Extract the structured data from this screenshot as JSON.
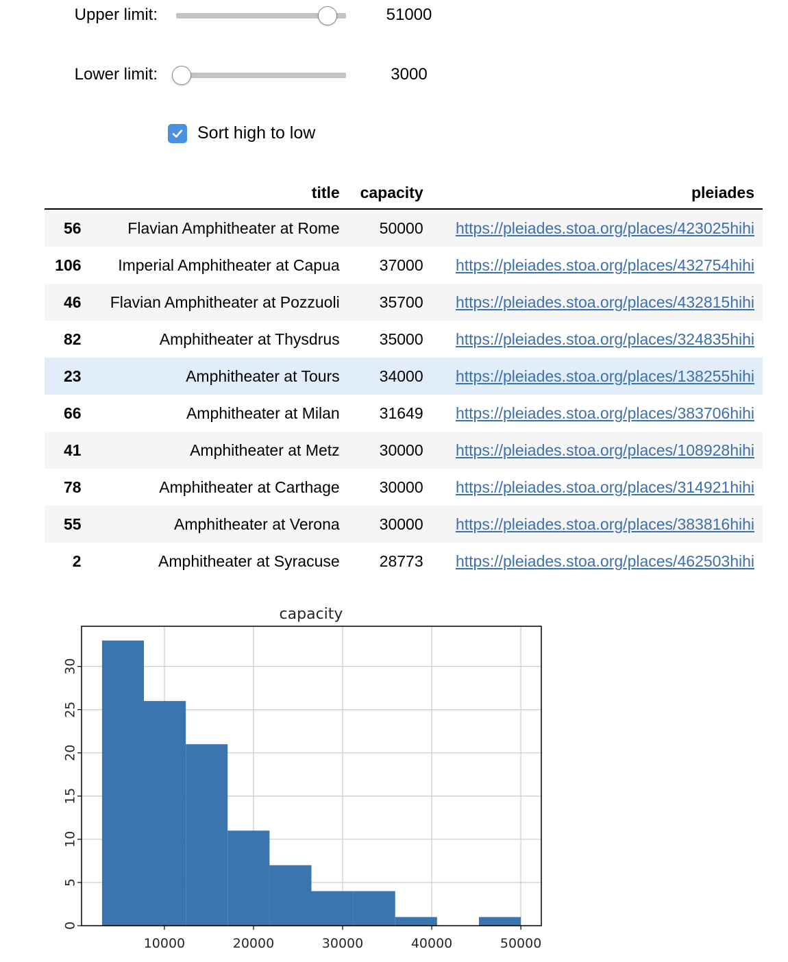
{
  "controls": {
    "upper": {
      "label": "Upper limit:",
      "value": "51000",
      "fraction": 0.92
    },
    "lower": {
      "label": "Lower limit:",
      "value": "3000",
      "fraction": 0.0
    },
    "sort": {
      "label": "Sort high to low",
      "checked": true,
      "icon": "check-icon"
    }
  },
  "table": {
    "columns": [
      "",
      "title",
      "capacity",
      "pleiades"
    ],
    "rows": [
      {
        "index": "56",
        "title": "Flavian Amphitheater at Rome",
        "capacity": "50000",
        "pleiades": "https://pleiades.stoa.org/places/423025hihi"
      },
      {
        "index": "106",
        "title": "Imperial Amphitheater at Capua",
        "capacity": "37000",
        "pleiades": "https://pleiades.stoa.org/places/432754hihi"
      },
      {
        "index": "46",
        "title": "Flavian Amphitheater at Pozzuoli",
        "capacity": "35700",
        "pleiades": "https://pleiades.stoa.org/places/432815hihi"
      },
      {
        "index": "82",
        "title": "Amphitheater at Thysdrus",
        "capacity": "35000",
        "pleiades": "https://pleiades.stoa.org/places/324835hihi"
      },
      {
        "index": "23",
        "title": "Amphitheater at Tours",
        "capacity": "34000",
        "pleiades": "https://pleiades.stoa.org/places/138255hihi"
      },
      {
        "index": "66",
        "title": "Amphitheater at Milan",
        "capacity": "31649",
        "pleiades": "https://pleiades.stoa.org/places/383706hihi"
      },
      {
        "index": "41",
        "title": "Amphitheater at Metz",
        "capacity": "30000",
        "pleiades": "https://pleiades.stoa.org/places/108928hihi"
      },
      {
        "index": "78",
        "title": "Amphitheater at Carthage",
        "capacity": "30000",
        "pleiades": "https://pleiades.stoa.org/places/314921hihi"
      },
      {
        "index": "55",
        "title": "Amphitheater at Verona",
        "capacity": "30000",
        "pleiades": "https://pleiades.stoa.org/places/383816hihi"
      },
      {
        "index": "2",
        "title": "Amphitheater at Syracuse",
        "capacity": "28773",
        "pleiades": "https://pleiades.stoa.org/places/462503hihi"
      }
    ],
    "highlighted_row": 4
  },
  "chart_data": {
    "type": "bar",
    "title": "capacity",
    "xlabel": "",
    "ylabel": "",
    "bins": [
      {
        "start": 3000,
        "end": 7700,
        "count": 33
      },
      {
        "start": 7700,
        "end": 12400,
        "count": 26
      },
      {
        "start": 12400,
        "end": 17100,
        "count": 21
      },
      {
        "start": 17100,
        "end": 21800,
        "count": 11
      },
      {
        "start": 21800,
        "end": 26500,
        "count": 7
      },
      {
        "start": 26500,
        "end": 31200,
        "count": 4
      },
      {
        "start": 31200,
        "end": 35900,
        "count": 4
      },
      {
        "start": 35900,
        "end": 40600,
        "count": 1
      },
      {
        "start": 40600,
        "end": 45300,
        "count": 0
      },
      {
        "start": 45300,
        "end": 50000,
        "count": 1
      }
    ],
    "xticks": [
      10000,
      20000,
      30000,
      40000,
      50000
    ],
    "yticks": [
      0,
      5,
      10,
      15,
      20,
      25,
      30
    ],
    "xlim": [
      700,
      52300
    ],
    "ylim": [
      0,
      34.65
    ],
    "grid": true,
    "bar_color": "#3b75af"
  }
}
